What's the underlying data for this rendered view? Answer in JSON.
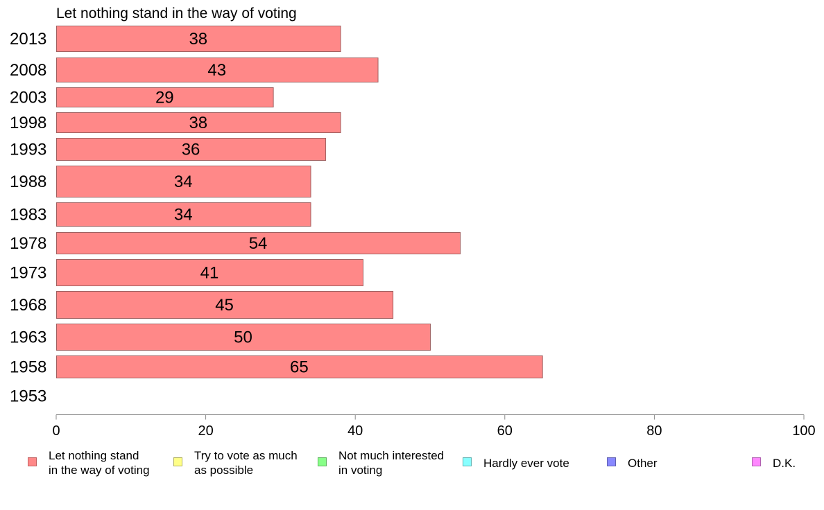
{
  "chart_data": {
    "type": "bar",
    "orientation": "horizontal",
    "title": "Let nothing stand in the way of voting",
    "categories": [
      "2013",
      "2008",
      "2003",
      "1998",
      "1993",
      "1988",
      "1983",
      "1978",
      "1973",
      "1968",
      "1963",
      "1958",
      "1953"
    ],
    "series": [
      {
        "name": "Let nothing stand in the way of voting",
        "values": [
          38,
          43,
          29,
          38,
          36,
          34,
          34,
          54,
          41,
          45,
          50,
          65,
          null
        ],
        "labels": [
          "38",
          "43",
          "29",
          "38",
          "36",
          "34",
          "34",
          "54",
          "41",
          "45",
          "50",
          "65",
          ""
        ]
      }
    ],
    "xlim": [
      0,
      100
    ],
    "xticks": [
      "0",
      "20",
      "40",
      "60",
      "80",
      "100"
    ],
    "grid": false,
    "legend": {
      "placement": "bottom",
      "entries": [
        {
          "lines": [
            "Let nothing stand",
            "in the way of voting"
          ],
          "color": "#ff8888",
          "border": "#c06060"
        },
        {
          "lines": [
            "Try to vote as much",
            "as possible"
          ],
          "color": "#ffff88",
          "border": "#b0b060"
        },
        {
          "lines": [
            "Not much interested",
            "in voting"
          ],
          "color": "#88ff88",
          "border": "#60b060"
        },
        {
          "lines": [
            "Hardly ever vote"
          ],
          "color": "#88ffff",
          "border": "#60b0b0"
        },
        {
          "lines": [
            "Other"
          ],
          "color": "#8888ff",
          "border": "#6060b0"
        },
        {
          "lines": [
            "D.K."
          ],
          "color": "#ff88ff",
          "border": "#b060b0"
        }
      ]
    }
  }
}
